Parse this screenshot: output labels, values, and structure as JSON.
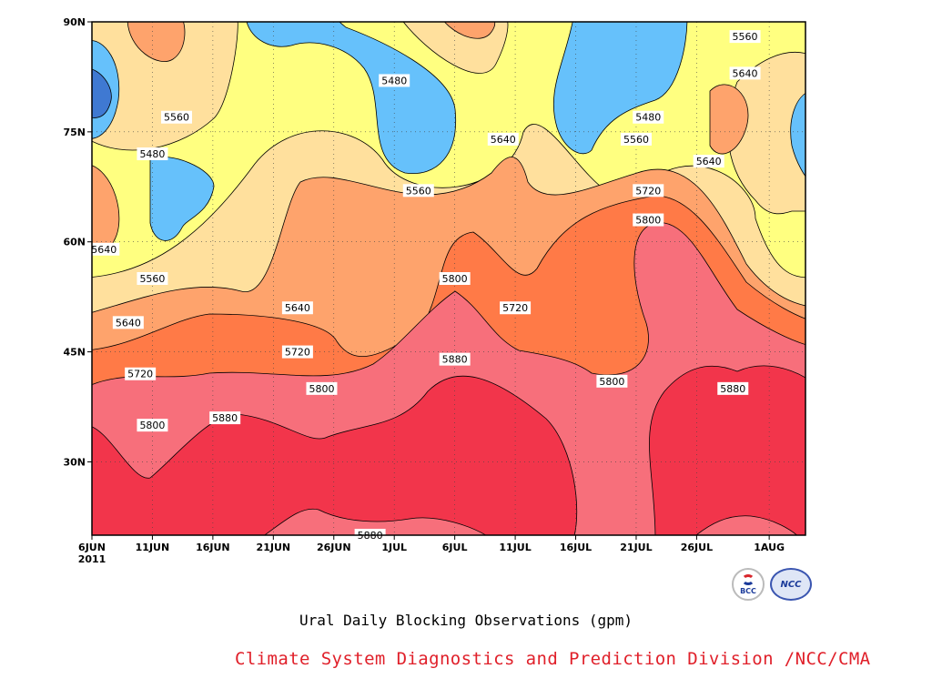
{
  "colors": {
    "below_5400": "#3f79d2",
    "band_5400_5480": "#66c1fb",
    "band_5480_5560": "#ffff80",
    "band_5560_5640": "#ffe09d",
    "band_5640_5720": "#fea36c",
    "band_5720_5800": "#ff7a47",
    "band_5800_5880": "#f76f7b",
    "above_5880": "#f2354b",
    "credit_text": "#e0202a"
  },
  "chart_data": {
    "type": "heatmap",
    "subtitle": "Ural Daily Blocking Observations (gpm)",
    "xlabel": "",
    "ylabel": "",
    "x_ticks": [
      "6JUN",
      "11JUN",
      "16JUN",
      "21JUN",
      "26JUN",
      "1JUL",
      "6JUL",
      "11JUL",
      "16JUL",
      "21JUL",
      "26JUL",
      "1AUG"
    ],
    "x_tick_year": "2011",
    "x_range": [
      "2011-06-06",
      "2011-08-04"
    ],
    "y_ticks": [
      "30N",
      "45N",
      "60N",
      "75N",
      "90N"
    ],
    "y_range": [
      20,
      90
    ],
    "contour_levels": [
      5480,
      5560,
      5640,
      5720,
      5800,
      5880
    ],
    "grid": "dotted",
    "legend": "none",
    "contour_labels": [
      {
        "value": "5480",
        "date": "2011-07-01",
        "lat": 82
      },
      {
        "value": "5480",
        "date": "2011-06-11",
        "lat": 72
      },
      {
        "value": "5480",
        "date": "2011-07-22",
        "lat": 77
      },
      {
        "value": "5560",
        "date": "2011-06-13",
        "lat": 77
      },
      {
        "value": "5560",
        "date": "2011-07-03",
        "lat": 67
      },
      {
        "value": "5560",
        "date": "2011-07-21",
        "lat": 74
      },
      {
        "value": "5560",
        "date": "2011-07-30",
        "lat": 88
      },
      {
        "value": "5560",
        "date": "2011-06-11",
        "lat": 55
      },
      {
        "value": "5640",
        "date": "2011-06-07",
        "lat": 59
      },
      {
        "value": "5640",
        "date": "2011-06-09",
        "lat": 49
      },
      {
        "value": "5640",
        "date": "2011-06-23",
        "lat": 51
      },
      {
        "value": "5640",
        "date": "2011-07-10",
        "lat": 74
      },
      {
        "value": "5640",
        "date": "2011-07-30",
        "lat": 83
      },
      {
        "value": "5640",
        "date": "2011-07-27",
        "lat": 71
      },
      {
        "value": "5720",
        "date": "2011-06-10",
        "lat": 42
      },
      {
        "value": "5720",
        "date": "2011-06-23",
        "lat": 45
      },
      {
        "value": "5720",
        "date": "2011-07-11",
        "lat": 51
      },
      {
        "value": "5720",
        "date": "2011-07-22",
        "lat": 67
      },
      {
        "value": "5800",
        "date": "2011-06-11",
        "lat": 35
      },
      {
        "value": "5800",
        "date": "2011-06-25",
        "lat": 40
      },
      {
        "value": "5800",
        "date": "2011-07-06",
        "lat": 55
      },
      {
        "value": "5800",
        "date": "2011-07-19",
        "lat": 41
      },
      {
        "value": "5800",
        "date": "2011-07-22",
        "lat": 63
      },
      {
        "value": "5880",
        "date": "2011-06-17",
        "lat": 36
      },
      {
        "value": "5880",
        "date": "2011-07-06",
        "lat": 44
      },
      {
        "value": "5880",
        "date": "2011-07-29",
        "lat": 40
      },
      {
        "value": "5880",
        "date": "2011-06-29",
        "lat": 20
      }
    ]
  },
  "credit": "Climate System Diagnostics and Prediction Division /NCC/CMA",
  "logos": {
    "bcc": {
      "label": "BCC",
      "icon": "bcc-logo-icon"
    },
    "ncc": {
      "label": "NCC",
      "icon": "ncc-logo-icon"
    }
  }
}
